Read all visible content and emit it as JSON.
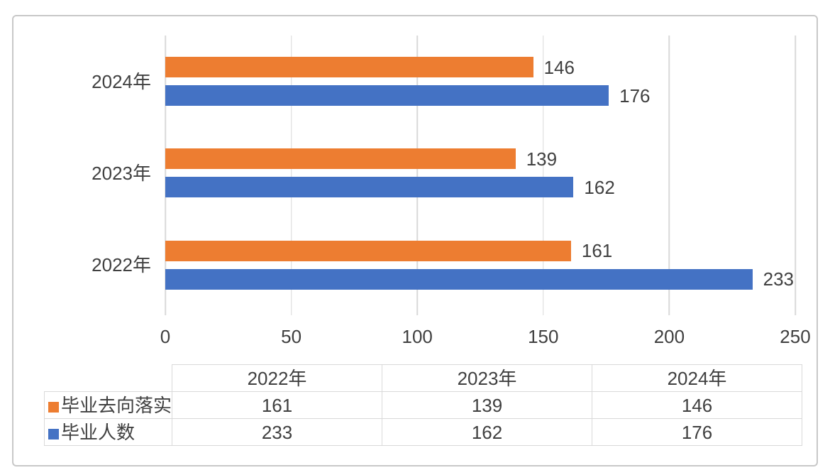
{
  "colors": {
    "background": "#FFFFFF",
    "frame_border": "#C8C8C8",
    "gridline": "#D9D9D9",
    "table_border": "#D9D9D9",
    "text": "#404040"
  },
  "chart_data": {
    "type": "bar",
    "orientation": "horizontal",
    "title": "",
    "categories": [
      "2022年",
      "2023年",
      "2024年"
    ],
    "category_display_order_top_to_bottom": [
      "2024年",
      "2023年",
      "2022年"
    ],
    "series": [
      {
        "name": "毕业去向落实",
        "color": "#ED7D31",
        "values": [
          161,
          139,
          146
        ]
      },
      {
        "name": "毕业人数",
        "color": "#4472C4",
        "values": [
          233,
          162,
          176
        ]
      }
    ],
    "value_axis": {
      "min": 0,
      "max": 250,
      "tick_interval": 50,
      "ticks": [
        0,
        50,
        100,
        150,
        200,
        250
      ]
    },
    "data_labels": true,
    "gridlines": true,
    "legend": "shown-in-data-table",
    "data_table": {
      "shown": true,
      "corner_label": "",
      "column_headers": [
        "2022年",
        "2023年",
        "2024年"
      ],
      "rows": [
        {
          "label": "毕业去向落实",
          "values": [
            161,
            139,
            146
          ]
        },
        {
          "label": "毕业人数",
          "values": [
            233,
            162,
            176
          ]
        }
      ]
    }
  }
}
